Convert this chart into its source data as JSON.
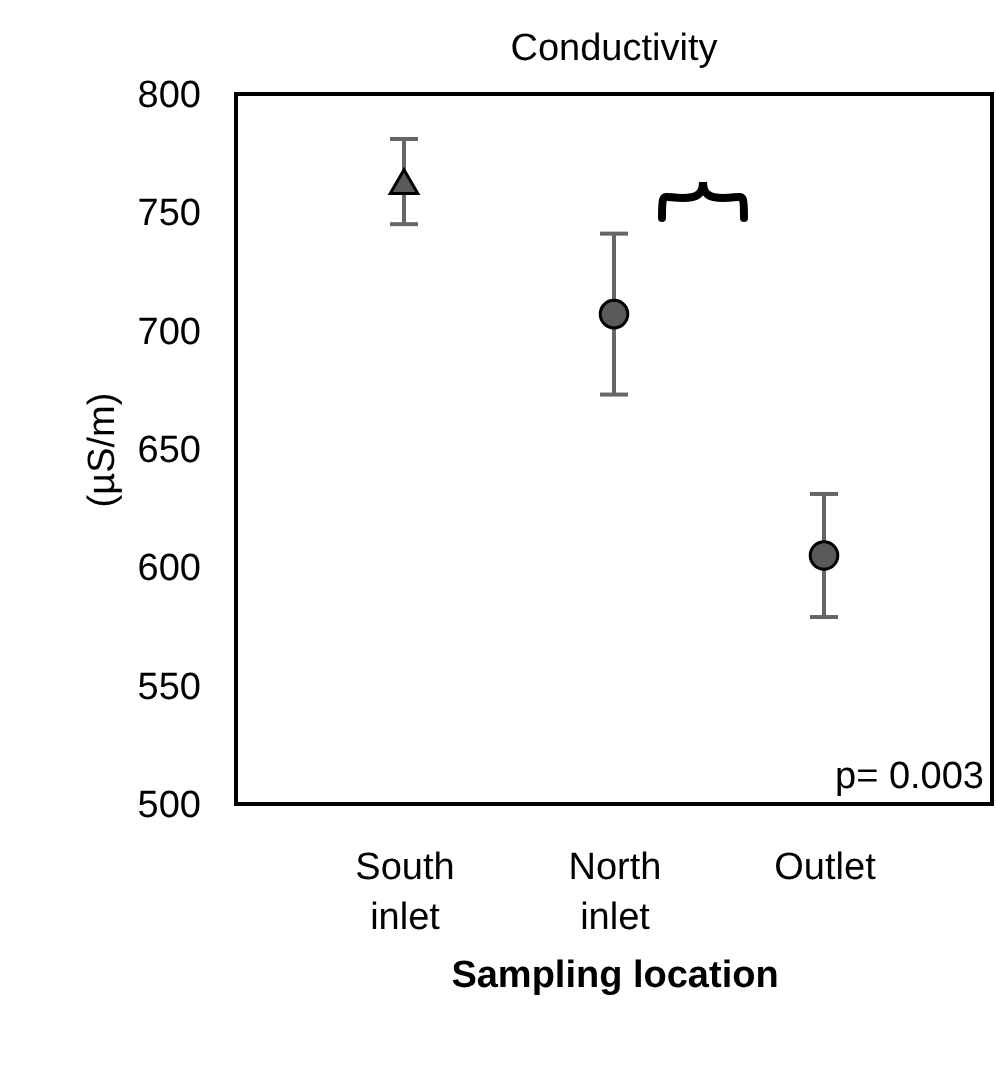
{
  "chart_data": {
    "type": "scatter",
    "title": "Conductivity",
    "xlabel": "Sampling location",
    "ylabel": "(µS/m)",
    "categories": [
      "South inlet",
      "North inlet",
      "Outlet"
    ],
    "series": [
      {
        "color": "#595959",
        "marker": "triangle",
        "values": [
          763,
          null,
          null
        ],
        "errors": [
          18,
          null,
          null
        ]
      },
      {
        "color": "#595959",
        "marker": "circle",
        "values": [
          null,
          707,
          605
        ],
        "errors": [
          null,
          34,
          26
        ]
      }
    ],
    "ylim": [
      500,
      800
    ],
    "yticks": [
      500,
      550,
      600,
      650,
      700,
      750,
      800
    ],
    "annotations": [
      "p= 0.003"
    ]
  }
}
